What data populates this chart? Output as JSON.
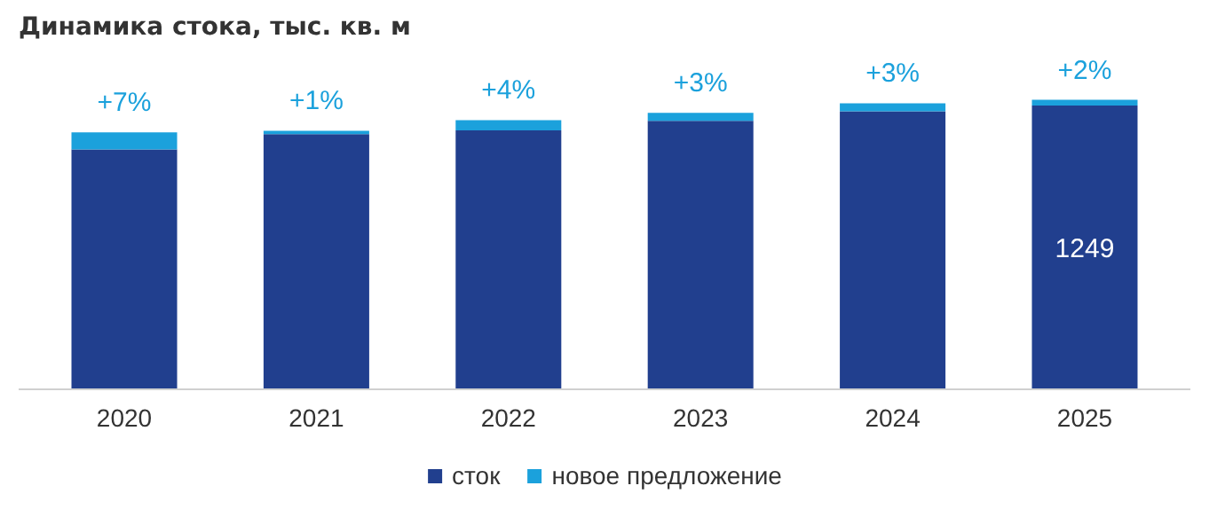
{
  "chart_data": {
    "type": "bar",
    "title": "Динамика стока, тыс. кв. м",
    "categories": [
      "2020",
      "2021",
      "2022",
      "2023",
      "2024",
      "2025"
    ],
    "stacked": true,
    "legend": "bottom",
    "grid": false,
    "series": [
      {
        "name": "сток",
        "color": "#213f8e",
        "values": [
          1056,
          1123,
          1140,
          1182,
          1224,
          1249
        ],
        "value_labels": [
          null,
          null,
          null,
          null,
          null,
          "1249"
        ]
      },
      {
        "name": "новое предложение",
        "color": "#1ba1dc",
        "values": [
          75,
          15,
          45,
          35,
          35,
          25
        ]
      }
    ],
    "annotations": [
      {
        "text": "+7%",
        "x": "2020",
        "y": 1131
      },
      {
        "text": "+1%",
        "x": "2021",
        "y": 1138
      },
      {
        "text": "+4%",
        "x": "2022",
        "y": 1185
      },
      {
        "text": "+3%",
        "x": "2023",
        "y": 1217
      },
      {
        "text": "+3%",
        "x": "2024",
        "y": 1259
      },
      {
        "text": "+2%",
        "x": "2025",
        "y": 1274
      }
    ]
  }
}
